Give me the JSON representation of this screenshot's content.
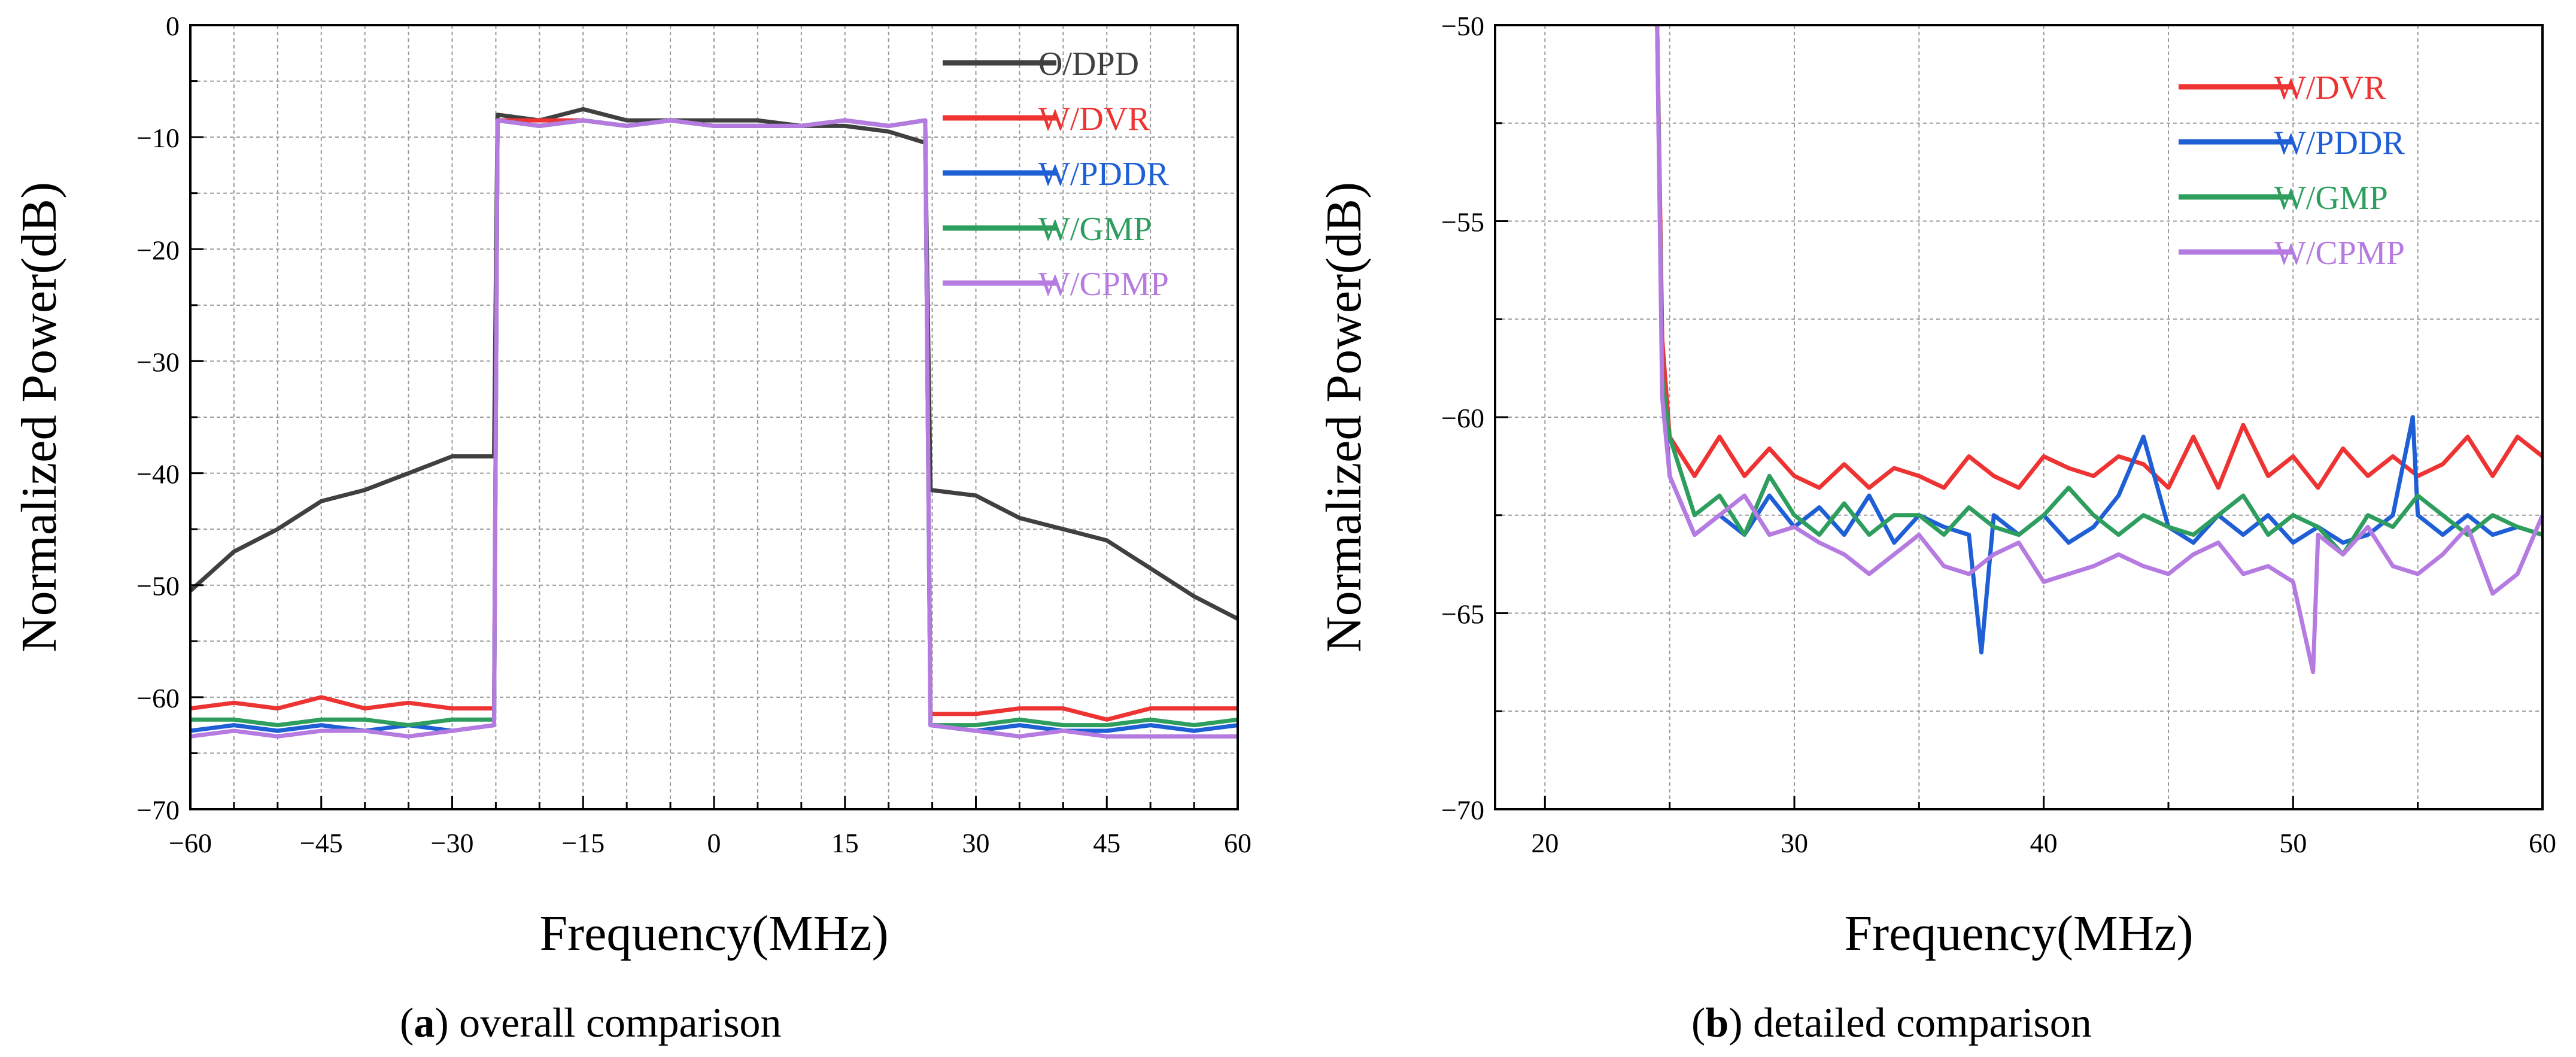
{
  "figure": {
    "caption_a": {
      "letter": "a",
      "text": "overall comparison"
    },
    "caption_b": {
      "letter": "b",
      "text": "detailed comparison"
    }
  },
  "chart_data": [
    {
      "id": "a",
      "type": "line",
      "xlabel": "Frequency(MHz)",
      "ylabel": "Normalized Power(dB)",
      "xlim": [
        -60,
        60
      ],
      "ylim": [
        -70,
        0
      ],
      "xticks": [
        -60,
        -45,
        -30,
        -15,
        0,
        15,
        30,
        45,
        60
      ],
      "yticks": [
        0,
        -10,
        -20,
        -30,
        -40,
        -50,
        -60,
        -70
      ],
      "grid": true,
      "legend_position": "top-right",
      "series": [
        {
          "name": "O/DPD",
          "color": "#404040",
          "x": [
            -60,
            -55,
            -50,
            -45,
            -40,
            -35,
            -30,
            -25.2,
            -24.8,
            -20,
            -15,
            -10,
            -5,
            0,
            5,
            10,
            15,
            20,
            24.2,
            24.8,
            30,
            35,
            40,
            45,
            50,
            55,
            60
          ],
          "y": [
            -50.5,
            -47,
            -45,
            -42.5,
            -41.5,
            -40,
            -38.5,
            -38.5,
            -8,
            -8.5,
            -7.5,
            -8.5,
            -8.5,
            -8.5,
            -8.5,
            -9,
            -9,
            -9.5,
            -10.5,
            -41.5,
            -42,
            -44,
            -45,
            -46,
            -48.5,
            -51,
            -53
          ]
        },
        {
          "name": "W/DVR",
          "color": "#ee3333",
          "x": [
            -60,
            -55,
            -50,
            -45,
            -40,
            -35,
            -30,
            -25.2,
            -24.8,
            -20,
            -15,
            -10,
            -5,
            0,
            5,
            10,
            15,
            20,
            24.2,
            24.8,
            30,
            35,
            40,
            45,
            50,
            55,
            60
          ],
          "y": [
            -61,
            -60.5,
            -61,
            -60,
            -61,
            -60.5,
            -61,
            -61,
            -8.5,
            -8.5,
            -8.5,
            -9,
            -8.5,
            -9,
            -9,
            -9,
            -8.5,
            -9,
            -8.5,
            -61.5,
            -61.5,
            -61,
            -61,
            -62,
            -61,
            -61,
            -61
          ]
        },
        {
          "name": "W/PDDR",
          "color": "#1f5fd6",
          "x": [
            -60,
            -55,
            -50,
            -45,
            -40,
            -35,
            -30,
            -25.2,
            -24.8,
            -20,
            -15,
            -10,
            -5,
            0,
            5,
            10,
            15,
            20,
            24.2,
            24.8,
            30,
            35,
            40,
            45,
            50,
            55,
            60
          ],
          "y": [
            -63,
            -62.5,
            -63,
            -62.5,
            -63,
            -62.5,
            -63,
            -62.5,
            -8.5,
            -9,
            -8.5,
            -9,
            -8.5,
            -9,
            -9,
            -9,
            -8.5,
            -9,
            -8.5,
            -62.5,
            -63,
            -62.5,
            -63,
            -63,
            -62.5,
            -63,
            -62.5
          ]
        },
        {
          "name": "W/GMP",
          "color": "#2e9e5e",
          "x": [
            -60,
            -55,
            -50,
            -45,
            -40,
            -35,
            -30,
            -25.2,
            -24.8,
            -20,
            -15,
            -10,
            -5,
            0,
            5,
            10,
            15,
            20,
            24.2,
            24.8,
            30,
            35,
            40,
            45,
            50,
            55,
            60
          ],
          "y": [
            -62,
            -62,
            -62.5,
            -62,
            -62,
            -62.5,
            -62,
            -62,
            -8.5,
            -9,
            -8.5,
            -9,
            -8.5,
            -9,
            -9,
            -9,
            -8.5,
            -9,
            -8.5,
            -62.5,
            -62.5,
            -62,
            -62.5,
            -62.5,
            -62,
            -62.5,
            -62
          ]
        },
        {
          "name": "W/CPMP",
          "color": "#b57be0",
          "x": [
            -60,
            -55,
            -50,
            -45,
            -40,
            -35,
            -30,
            -25.2,
            -24.8,
            -20,
            -15,
            -10,
            -5,
            0,
            5,
            10,
            15,
            20,
            24.2,
            24.8,
            30,
            35,
            40,
            45,
            50,
            55,
            60
          ],
          "y": [
            -63.5,
            -63,
            -63.5,
            -63,
            -63,
            -63.5,
            -63,
            -62.5,
            -8.5,
            -9,
            -8.5,
            -9,
            -8.5,
            -9,
            -9,
            -9,
            -8.5,
            -9,
            -8.5,
            -62.5,
            -63,
            -63.5,
            -63,
            -63.5,
            -63.5,
            -63.5,
            -63.5
          ]
        }
      ]
    },
    {
      "id": "b",
      "type": "line",
      "xlabel": "Frequency(MHz)",
      "ylabel": "Normalized Power(dB)",
      "xlim": [
        18,
        60
      ],
      "ylim": [
        -70,
        -50
      ],
      "xticks": [
        20,
        30,
        40,
        50,
        60
      ],
      "yticks": [
        -50,
        -55,
        -60,
        -65,
        -70
      ],
      "grid": true,
      "legend_position": "top-right",
      "series": [
        {
          "name": "W/DVR",
          "color": "#ee3333",
          "x": [
            24.5,
            24.7,
            25,
            26,
            27,
            28,
            29,
            30,
            31,
            32,
            33,
            34,
            35,
            36,
            37,
            38,
            39,
            40,
            41,
            42,
            43,
            44,
            45,
            46,
            47,
            48,
            49,
            50,
            51,
            52,
            53,
            54,
            55,
            56,
            57,
            58,
            59,
            60
          ],
          "y": [
            -50,
            -58,
            -60.5,
            -61.5,
            -60.5,
            -61.5,
            -60.8,
            -61.5,
            -61.8,
            -61.2,
            -61.8,
            -61.3,
            -61.5,
            -61.8,
            -61,
            -61.5,
            -61.8,
            -61,
            -61.3,
            -61.5,
            -61,
            -61.2,
            -61.8,
            -60.5,
            -61.8,
            -60.2,
            -61.5,
            -61,
            -61.8,
            -60.8,
            -61.5,
            -61,
            -61.5,
            -61.2,
            -60.5,
            -61.5,
            -60.5,
            -61
          ]
        },
        {
          "name": "W/PDDR",
          "color": "#1f5fd6",
          "x": [
            24.5,
            24.7,
            25,
            26,
            27,
            28,
            29,
            30,
            31,
            32,
            33,
            34,
            35,
            36,
            37,
            37.5,
            38,
            39,
            40,
            41,
            42,
            43,
            44,
            45,
            46,
            47,
            48,
            49,
            50,
            51,
            52,
            53,
            54,
            54.8,
            55,
            56,
            57,
            58,
            59,
            60
          ],
          "y": [
            -50,
            -59,
            -61.5,
            -63,
            -62.5,
            -63,
            -62,
            -62.8,
            -62.3,
            -63,
            -62,
            -63.2,
            -62.5,
            -62.8,
            -63,
            -66,
            -62.5,
            -63,
            -62.5,
            -63.2,
            -62.8,
            -62,
            -60.5,
            -62.8,
            -63.2,
            -62.5,
            -63,
            -62.5,
            -63.2,
            -62.8,
            -63.2,
            -63,
            -62.5,
            -60,
            -62.5,
            -63,
            -62.5,
            -63,
            -62.8,
            -63
          ]
        },
        {
          "name": "W/GMP",
          "color": "#2e9e5e",
          "x": [
            24.5,
            24.7,
            25,
            26,
            27,
            28,
            29,
            30,
            31,
            32,
            33,
            34,
            35,
            36,
            37,
            38,
            39,
            40,
            41,
            42,
            43,
            44,
            45,
            46,
            47,
            48,
            49,
            50,
            51,
            52,
            53,
            54,
            55,
            56,
            57,
            58,
            59,
            60
          ],
          "y": [
            -50,
            -59,
            -60.5,
            -62.5,
            -62,
            -63,
            -61.5,
            -62.5,
            -63,
            -62.2,
            -63,
            -62.5,
            -62.5,
            -63,
            -62.3,
            -62.8,
            -63,
            -62.5,
            -61.8,
            -62.5,
            -63,
            -62.5,
            -62.8,
            -63,
            -62.5,
            -62,
            -63,
            -62.5,
            -62.8,
            -63.5,
            -62.5,
            -62.8,
            -62,
            -62.5,
            -63,
            -62.5,
            -62.8,
            -63
          ]
        },
        {
          "name": "W/CPMP",
          "color": "#b57be0",
          "x": [
            24.5,
            24.7,
            25,
            26,
            27,
            28,
            29,
            30,
            31,
            32,
            33,
            34,
            35,
            36,
            37,
            38,
            39,
            40,
            41,
            42,
            43,
            44,
            45,
            46,
            47,
            48,
            49,
            50,
            50.8,
            51,
            52,
            53,
            54,
            55,
            56,
            57,
            58,
            59,
            60
          ],
          "y": [
            -50,
            -59.5,
            -61.5,
            -63,
            -62.5,
            -62,
            -63,
            -62.8,
            -63.2,
            -63.5,
            -64,
            -63.5,
            -63,
            -63.8,
            -64,
            -63.5,
            -63.2,
            -64.2,
            -64,
            -63.8,
            -63.5,
            -63.8,
            -64,
            -63.5,
            -63.2,
            -64,
            -63.8,
            -64.2,
            -66.5,
            -63,
            -63.5,
            -62.8,
            -63.8,
            -64,
            -63.5,
            -62.8,
            -64.5,
            -64,
            -62.5
          ]
        }
      ]
    }
  ]
}
